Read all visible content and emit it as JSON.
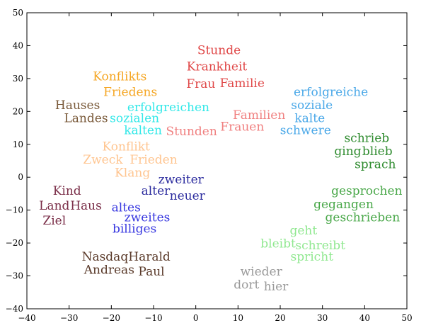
{
  "chart_data": {
    "type": "scatter",
    "title": "",
    "xlabel": "",
    "ylabel": "",
    "xlim": [
      -40,
      50
    ],
    "ylim": [
      -40,
      50
    ],
    "x_ticks": [
      -40,
      -30,
      -20,
      -10,
      0,
      10,
      20,
      30,
      40,
      50
    ],
    "y_ticks": [
      -40,
      -30,
      -20,
      -10,
      0,
      10,
      20,
      30,
      40,
      50
    ],
    "x_tick_labels": [
      "−40",
      "−30",
      "−20",
      "−10",
      "0",
      "10",
      "20",
      "30",
      "40",
      "50"
    ],
    "y_tick_labels": [
      "−40",
      "−30",
      "−20",
      "−10",
      "0",
      "10",
      "20",
      "30",
      "40",
      "50"
    ],
    "grid": false,
    "points": [
      {
        "text": "Stunde",
        "x": 5.5,
        "y": 38.5,
        "color": "#e04848"
      },
      {
        "text": "Krankheit",
        "x": 5,
        "y": 33.5,
        "color": "#e04848"
      },
      {
        "text": "Frau",
        "x": 1.2,
        "y": 28.2,
        "color": "#e04848"
      },
      {
        "text": "Familie",
        "x": 11,
        "y": 28.5,
        "color": "#e04848"
      },
      {
        "text": "Konflikts",
        "x": -18,
        "y": 30.5,
        "color": "#f5a623"
      },
      {
        "text": "Friedens",
        "x": -15.5,
        "y": 25.8,
        "color": "#f5a623"
      },
      {
        "text": "Hauses",
        "x": -28,
        "y": 21.8,
        "color": "#7a5a3a"
      },
      {
        "text": "Landes",
        "x": -26,
        "y": 17.8,
        "color": "#7a5a3a"
      },
      {
        "text": "erfolgreichen",
        "x": -6.5,
        "y": 21.2,
        "color": "#33e8e8"
      },
      {
        "text": "sozialen",
        "x": -14.5,
        "y": 17.8,
        "color": "#33e8e8"
      },
      {
        "text": "kalten",
        "x": -12.5,
        "y": 14.2,
        "color": "#33e8e8"
      },
      {
        "text": "Stunden",
        "x": -1,
        "y": 13.8,
        "color": "#f08080"
      },
      {
        "text": "Familien",
        "x": 15,
        "y": 18.8,
        "color": "#f08080"
      },
      {
        "text": "Frauen",
        "x": 11,
        "y": 15.2,
        "color": "#f08080"
      },
      {
        "text": "erfolgreiche",
        "x": 32,
        "y": 25.8,
        "color": "#4aa8e8"
      },
      {
        "text": "soziale",
        "x": 27.5,
        "y": 21.8,
        "color": "#4aa8e8"
      },
      {
        "text": "kalte",
        "x": 27,
        "y": 17.8,
        "color": "#4aa8e8"
      },
      {
        "text": "schwere",
        "x": 26,
        "y": 14.2,
        "color": "#4aa8e8"
      },
      {
        "text": "schrieb",
        "x": 40.5,
        "y": 11.8,
        "color": "#2e8b2e"
      },
      {
        "text": "ging",
        "x": 36,
        "y": 7.8,
        "color": "#2e8b2e"
      },
      {
        "text": "blieb",
        "x": 43,
        "y": 7.8,
        "color": "#2e8b2e"
      },
      {
        "text": "sprach",
        "x": 42.5,
        "y": 3.8,
        "color": "#2e8b2e"
      },
      {
        "text": "Konflikt",
        "x": -16.5,
        "y": 9.2,
        "color": "#ffc590"
      },
      {
        "text": "Zweck",
        "x": -22,
        "y": 5.2,
        "color": "#ffc590"
      },
      {
        "text": "Frieden",
        "x": -10,
        "y": 5.2,
        "color": "#ffc590"
      },
      {
        "text": "Klang",
        "x": -15,
        "y": 1.2,
        "color": "#ffc590"
      },
      {
        "text": "zweiter",
        "x": -3.5,
        "y": -0.8,
        "color": "#2b2b9e"
      },
      {
        "text": "alter",
        "x": -9.5,
        "y": -4.3,
        "color": "#2b2b9e"
      },
      {
        "text": "neuer",
        "x": -2,
        "y": -5.8,
        "color": "#2b2b9e"
      },
      {
        "text": "altes",
        "x": -16.5,
        "y": -9.3,
        "color": "#3838e0"
      },
      {
        "text": "zweites",
        "x": -11.5,
        "y": -12.3,
        "color": "#3838e0"
      },
      {
        "text": "billiges",
        "x": -14.5,
        "y": -15.8,
        "color": "#3838e0"
      },
      {
        "text": "Kind",
        "x": -30.5,
        "y": -4.3,
        "color": "#7a2e48"
      },
      {
        "text": "Land",
        "x": -33.5,
        "y": -8.8,
        "color": "#7a2e48"
      },
      {
        "text": "Haus",
        "x": -26,
        "y": -8.8,
        "color": "#7a2e48"
      },
      {
        "text": "Ziel",
        "x": -33.5,
        "y": -13.3,
        "color": "#7a2e48"
      },
      {
        "text": "gesprochen",
        "x": 40.5,
        "y": -4.3,
        "color": "#4aa84a"
      },
      {
        "text": "gegangen",
        "x": 35,
        "y": -8.3,
        "color": "#4aa84a"
      },
      {
        "text": "geschrieben",
        "x": 39.5,
        "y": -12.3,
        "color": "#4aa84a"
      },
      {
        "text": "geht",
        "x": 25.5,
        "y": -16.3,
        "color": "#90e890"
      },
      {
        "text": "bleibt",
        "x": 19.5,
        "y": -20.3,
        "color": "#90e890"
      },
      {
        "text": "schreibt",
        "x": 29.5,
        "y": -20.8,
        "color": "#90e890"
      },
      {
        "text": "spricht",
        "x": 27.5,
        "y": -24.3,
        "color": "#90e890"
      },
      {
        "text": "Nasdaq",
        "x": -21.5,
        "y": -24.3,
        "color": "#5a3a2a"
      },
      {
        "text": "Harald",
        "x": -11,
        "y": -24.3,
        "color": "#5a3a2a"
      },
      {
        "text": "Andreas",
        "x": -20.5,
        "y": -28.3,
        "color": "#5a3a2a"
      },
      {
        "text": "Paul",
        "x": -10.5,
        "y": -28.8,
        "color": "#5a3a2a"
      },
      {
        "text": "wieder",
        "x": 15.5,
        "y": -28.8,
        "color": "#9a9a9a"
      },
      {
        "text": "dort",
        "x": 12,
        "y": -32.8,
        "color": "#9a9a9a"
      },
      {
        "text": "hier",
        "x": 19,
        "y": -33.3,
        "color": "#9a9a9a"
      }
    ]
  }
}
